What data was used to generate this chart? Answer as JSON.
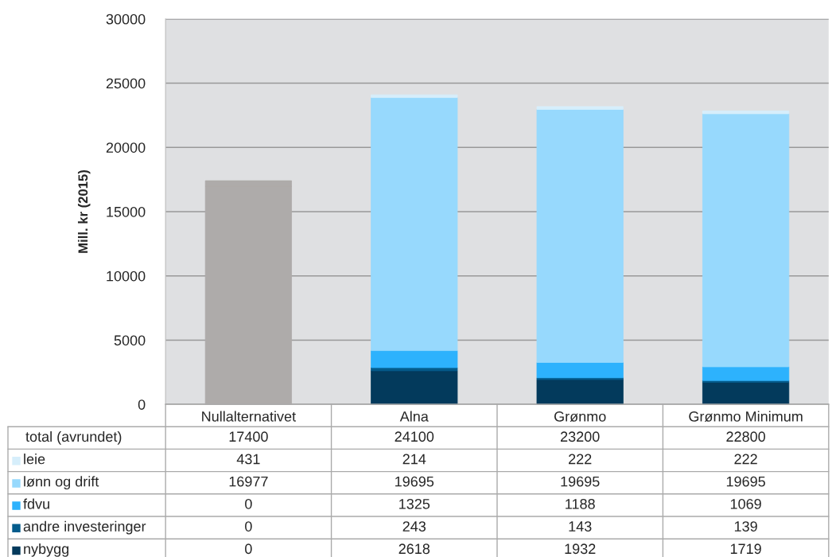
{
  "chart_data": {
    "type": "bar",
    "stacked": true,
    "ylabel": "Mill. kr (2015)",
    "categories": [
      "Nullalternativet",
      "Alna",
      "Grønmo",
      "Grønmo Minimum"
    ],
    "series": [
      {
        "name": "nybygg",
        "color": "#033a5c",
        "colors": [
          "#aeabaa",
          "#033a5c",
          "#033a5c",
          "#033a5c"
        ],
        "values": [
          0,
          2618,
          1932,
          1719
        ]
      },
      {
        "name": "andre investeringer",
        "color": "#045c8c",
        "colors": [
          "#aeabaa",
          "#045c8c",
          "#045c8c",
          "#045c8c"
        ],
        "values": [
          0,
          243,
          143,
          139
        ]
      },
      {
        "name": "fdvu",
        "color": "#2db2fd",
        "colors": [
          "#aeabaa",
          "#2db2fd",
          "#2db2fd",
          "#2db2fd"
        ],
        "values": [
          0,
          1325,
          1188,
          1069
        ]
      },
      {
        "name": "lønn og drift",
        "color": "#97d9fd",
        "colors": [
          "#aeabaa",
          "#97d9fd",
          "#97d9fd",
          "#97d9fd"
        ],
        "values": [
          16977,
          19695,
          19695,
          19695
        ]
      },
      {
        "name": "leie",
        "color": "#d6eefb",
        "colors": [
          "#aeabaa",
          "#d6eefb",
          "#d6eefb",
          "#d6eefb"
        ],
        "values": [
          431,
          214,
          222,
          222
        ]
      }
    ],
    "annotations": [
      "total (avrundet)",
      "17400",
      "24100",
      "23200",
      "22800"
    ],
    "data_labels": true,
    "ylim": [
      0,
      30000
    ],
    "yticks": [
      0,
      5000,
      10000,
      15000,
      20000,
      25000,
      30000
    ],
    "grid": "y",
    "legend": "bottom left"
  }
}
